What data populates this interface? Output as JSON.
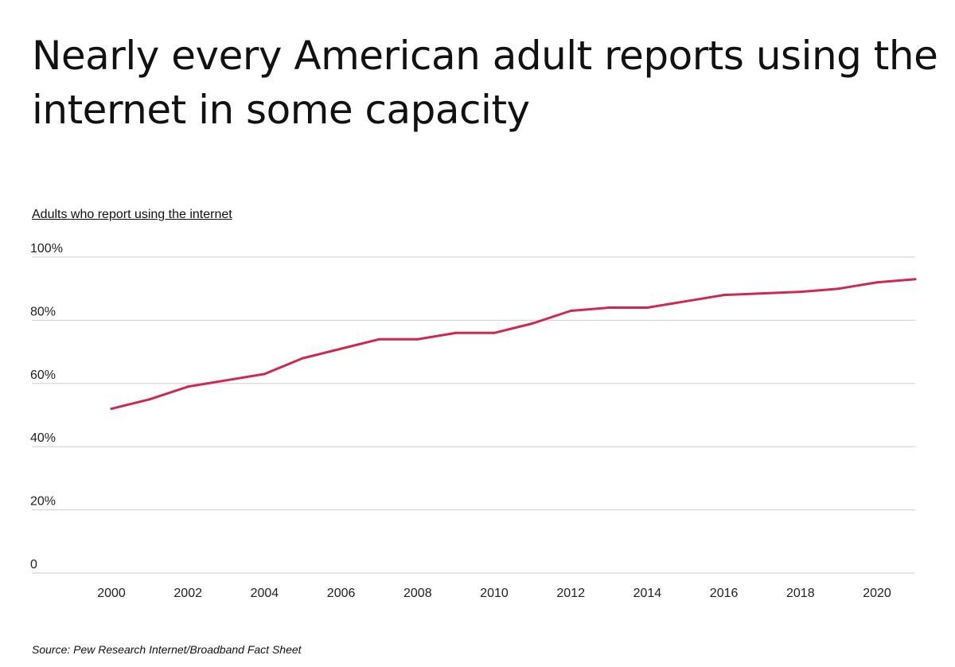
{
  "chart_data": {
    "type": "line",
    "title": "Nearly every American adult reports using the internet in some capacity",
    "subtitle": "Adults who report using the internet",
    "source": "Source:  Pew Research Internet/Broadband Fact Sheet",
    "x": [
      2000,
      2001,
      2002,
      2003,
      2004,
      2005,
      2006,
      2007,
      2008,
      2009,
      2010,
      2011,
      2012,
      2013,
      2014,
      2015,
      2016,
      2017,
      2018,
      2019,
      2020,
      2021
    ],
    "series": [
      {
        "values": [
          52,
          55,
          59,
          61,
          63,
          68,
          71,
          74,
          74,
          76,
          76,
          79,
          83,
          84,
          84,
          86,
          88,
          88.5,
          89,
          90,
          92,
          93
        ],
        "color": "#d0284f"
      }
    ],
    "x_ticks": [
      "2000",
      "2002",
      "2004",
      "2006",
      "2008",
      "2010",
      "2012",
      "2014",
      "2016",
      "2018",
      "2020"
    ],
    "y_ticks": [
      "0",
      "20%",
      "40%",
      "60%",
      "80%",
      "100%"
    ],
    "ylim": [
      0,
      100
    ],
    "grid": "horizontal"
  }
}
